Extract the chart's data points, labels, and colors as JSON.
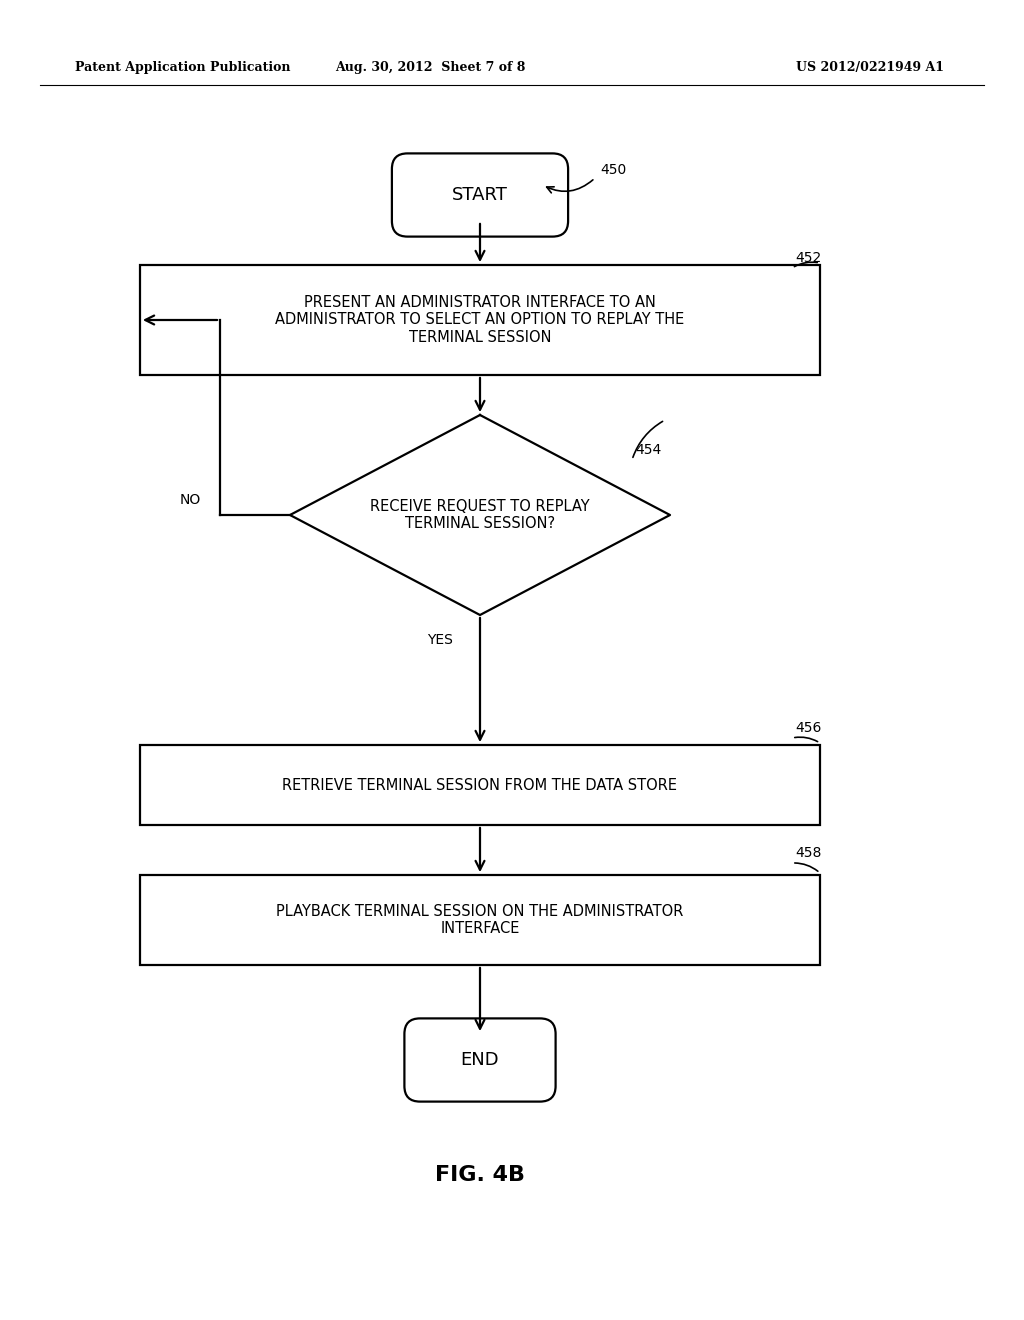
{
  "bg_color": "#ffffff",
  "header_left": "Patent Application Publication",
  "header_center": "Aug. 30, 2012  Sheet 7 of 8",
  "header_right": "US 2012/0221949 A1",
  "fig_label": "FIG. 4B",
  "start_label": "START",
  "end_label": "END",
  "box452_text": "PRESENT AN ADMINISTRATOR INTERFACE TO AN\nADMINISTRATOR TO SELECT AN OPTION TO REPLAY THE\nTERMINAL SESSION",
  "diamond454_text": "RECEIVE REQUEST TO REPLAY\nTERMINAL SESSION?",
  "box456_text": "RETRIEVE TERMINAL SESSION FROM THE DATA STORE",
  "box458_text": "PLAYBACK TERMINAL SESSION ON THE ADMINISTRATOR\nINTERFACE",
  "ref_450": "450",
  "ref_452": "452",
  "ref_454": "454",
  "ref_456": "456",
  "ref_458": "458",
  "yes_label": "YES",
  "no_label": "NO",
  "lw": 1.6
}
